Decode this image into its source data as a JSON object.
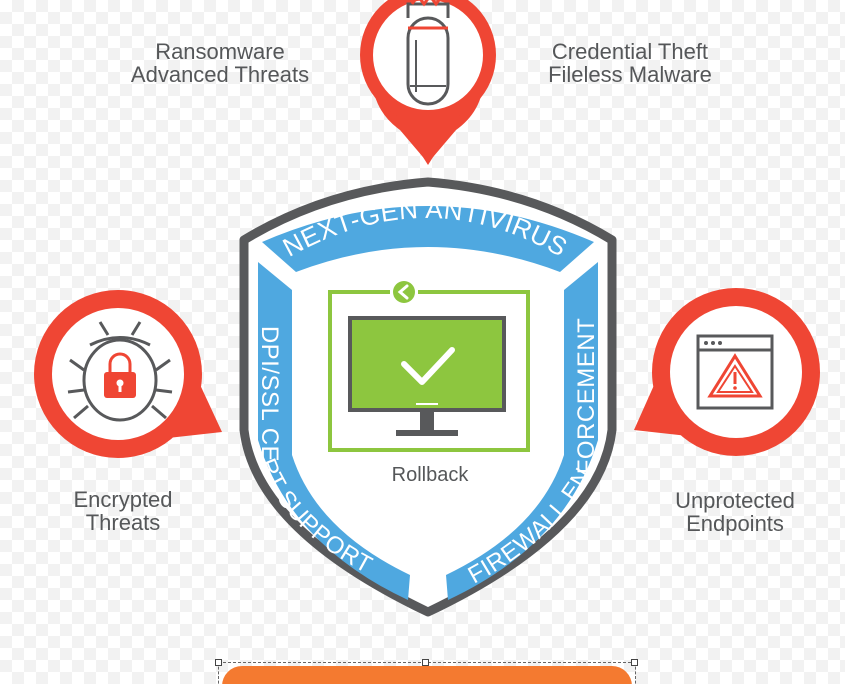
{
  "threats": {
    "top_left": [
      "Ransomware",
      "Advanced Threats"
    ],
    "top_right": [
      "Credential Theft",
      "Fileless Malware"
    ],
    "mid_left": [
      "Encrypted",
      "Threats"
    ],
    "mid_right": [
      "Unprotected",
      "Endpoints"
    ]
  },
  "shield": {
    "top_band": "NEXT-GEN ANTIVIRUS",
    "left_band": "DPI/SSL CERT SUPPORT",
    "right_band": "FIREWALL ENFORCEMENT",
    "center_label": "Rollback"
  },
  "colors": {
    "accent_red": "#ef4634",
    "band_blue": "#4fa8e0",
    "shield_gray": "#58595b",
    "monitor_green": "#8dc63f",
    "button_orange": "#f47a30"
  },
  "icons": {
    "top": "bomb-icon",
    "left": "bug-lock-icon",
    "right": "browser-warning-icon",
    "center": "monitor-check-icon"
  }
}
